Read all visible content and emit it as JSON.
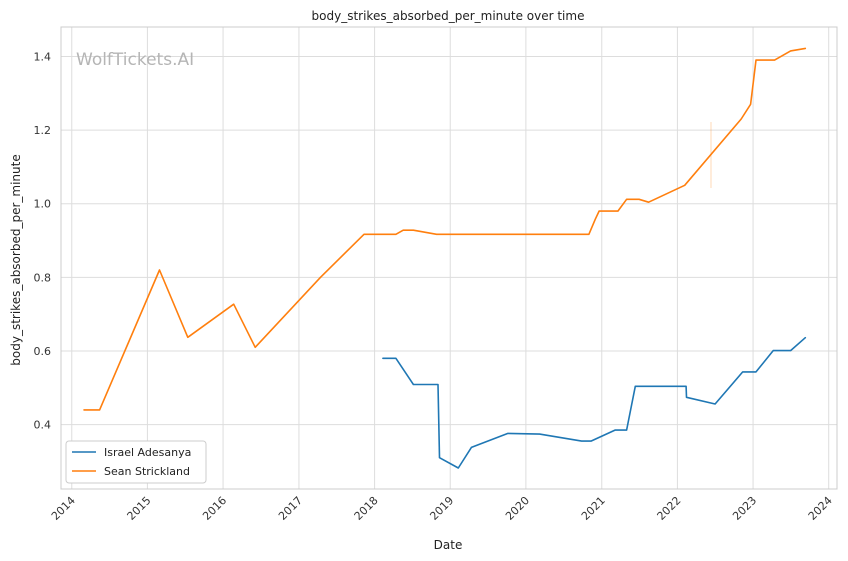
{
  "chart_data": {
    "type": "line",
    "title": "body_strikes_absorbed_per_minute over time",
    "xlabel": "Date",
    "ylabel": "body_strikes_absorbed_per_minute",
    "watermark": "WolfTickets.AI",
    "x_ticks": [
      "2014",
      "2015",
      "2016",
      "2017",
      "2018",
      "2019",
      "2020",
      "2021",
      "2022",
      "2023",
      "2024"
    ],
    "y_ticks": [
      "0.4",
      "0.6",
      "0.8",
      "1.0",
      "1.2",
      "1.4"
    ],
    "xlim": [
      "2013-11-10",
      "2024-02-10"
    ],
    "ylim": [
      0.225,
      1.48
    ],
    "grid": true,
    "legend_position": "lower-left",
    "series": [
      {
        "name": "Israel Adesanya",
        "color": "#1f77b4",
        "points": [
          [
            "2018-02-10",
            0.58
          ],
          [
            "2018-04-14",
            0.58
          ],
          [
            "2018-07-07",
            0.509
          ],
          [
            "2018-11-03",
            0.509
          ],
          [
            "2018-11-10",
            0.31
          ],
          [
            "2019-02-09",
            0.282
          ],
          [
            "2019-04-13",
            0.338
          ],
          [
            "2019-10-06",
            0.376
          ],
          [
            "2020-03-07",
            0.374
          ],
          [
            "2020-09-26",
            0.355
          ],
          [
            "2020-11-10",
            0.355
          ],
          [
            "2021-03-06",
            0.385
          ],
          [
            "2021-05-01",
            0.385
          ],
          [
            "2021-06-12",
            0.504
          ],
          [
            "2022-02-12",
            0.504
          ],
          [
            "2022-02-14",
            0.474
          ],
          [
            "2022-07-02",
            0.456
          ],
          [
            "2022-11-12",
            0.543
          ],
          [
            "2023-01-15",
            0.543
          ],
          [
            "2023-04-08",
            0.601
          ],
          [
            "2023-07-01",
            0.601
          ],
          [
            "2023-09-10",
            0.636
          ]
        ]
      },
      {
        "name": "Sean Strickland",
        "color": "#ff7f0e",
        "points": [
          [
            "2014-03-01",
            0.44
          ],
          [
            "2014-05-15",
            0.44
          ],
          [
            "2015-02-28",
            0.82
          ],
          [
            "2015-07-15",
            0.637
          ],
          [
            "2016-02-21",
            0.727
          ],
          [
            "2016-06-04",
            0.61
          ],
          [
            "2017-04-15",
            0.8
          ],
          [
            "2017-11-11",
            0.917
          ],
          [
            "2018-04-14",
            0.917
          ],
          [
            "2018-05-19",
            0.928
          ],
          [
            "2018-07-07",
            0.928
          ],
          [
            "2018-10-27",
            0.917
          ],
          [
            "2020-10-31",
            0.917
          ],
          [
            "2020-12-01",
            0.958
          ],
          [
            "2020-12-19",
            0.98
          ],
          [
            "2021-03-20",
            0.98
          ],
          [
            "2021-05-01",
            1.012
          ],
          [
            "2021-06-30",
            1.012
          ],
          [
            "2021-08-15",
            1.004
          ],
          [
            "2022-02-05",
            1.05
          ],
          [
            "2022-11-05",
            1.23
          ],
          [
            "2022-12-20",
            1.27
          ],
          [
            "2023-01-15",
            1.39
          ],
          [
            "2023-04-15",
            1.39
          ],
          [
            "2023-07-01",
            1.415
          ],
          [
            "2023-09-10",
            1.422
          ]
        ]
      }
    ]
  }
}
